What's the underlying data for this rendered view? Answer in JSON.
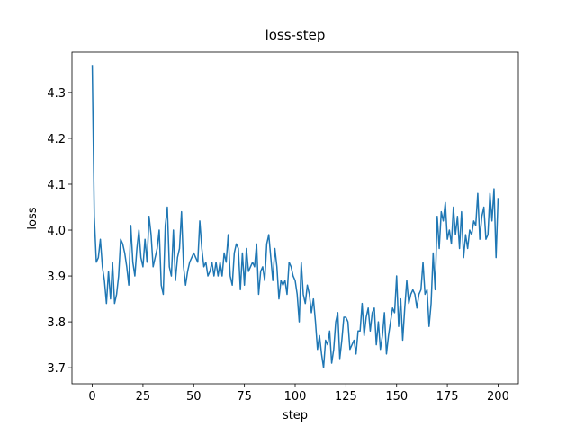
{
  "chart_data": {
    "type": "line",
    "title": "loss-step",
    "x_label": "step",
    "y_label": "loss",
    "color": "#1f77b4",
    "x": [
      0,
      1,
      2,
      3,
      4,
      5,
      6,
      7,
      8,
      9,
      10,
      11,
      12,
      13,
      14,
      15,
      16,
      17,
      18,
      19,
      20,
      21,
      22,
      23,
      24,
      25,
      26,
      27,
      28,
      29,
      30,
      31,
      32,
      33,
      34,
      35,
      36,
      37,
      38,
      39,
      40,
      41,
      42,
      43,
      44,
      45,
      46,
      47,
      48,
      49,
      50,
      51,
      52,
      53,
      54,
      55,
      56,
      57,
      58,
      59,
      60,
      61,
      62,
      63,
      64,
      65,
      66,
      67,
      68,
      69,
      70,
      71,
      72,
      73,
      74,
      75,
      76,
      77,
      78,
      79,
      80,
      81,
      82,
      83,
      84,
      85,
      86,
      87,
      88,
      89,
      90,
      91,
      92,
      93,
      94,
      95,
      96,
      97,
      98,
      99,
      100,
      101,
      102,
      103,
      104,
      105,
      106,
      107,
      108,
      109,
      110,
      111,
      112,
      113,
      114,
      115,
      116,
      117,
      118,
      119,
      120,
      121,
      122,
      123,
      124,
      125,
      126,
      127,
      128,
      129,
      130,
      131,
      132,
      133,
      134,
      135,
      136,
      137,
      138,
      139,
      140,
      141,
      142,
      143,
      144,
      145,
      146,
      147,
      148,
      149,
      150,
      151,
      152,
      153,
      154,
      155,
      156,
      157,
      158,
      159,
      160,
      161,
      162,
      163,
      164,
      165,
      166,
      167,
      168,
      169,
      170,
      171,
      172,
      173,
      174,
      175,
      176,
      177,
      178,
      179,
      180,
      181,
      182,
      183,
      184,
      185,
      186,
      187,
      188,
      189,
      190,
      191,
      192,
      193,
      194,
      195,
      196,
      197,
      198,
      199,
      200
    ],
    "values": [
      4.36,
      4.03,
      3.93,
      3.94,
      3.98,
      3.92,
      3.89,
      3.84,
      3.91,
      3.85,
      3.93,
      3.84,
      3.86,
      3.9,
      3.98,
      3.97,
      3.95,
      3.92,
      3.88,
      4.01,
      3.93,
      3.9,
      3.96,
      4.0,
      3.94,
      3.92,
      3.98,
      3.93,
      4.03,
      3.99,
      3.92,
      3.94,
      3.96,
      4.0,
      3.88,
      3.86,
      4.01,
      4.05,
      3.92,
      3.9,
      4.0,
      3.89,
      3.94,
      3.96,
      4.04,
      3.92,
      3.88,
      3.91,
      3.93,
      3.94,
      3.95,
      3.94,
      3.93,
      4.02,
      3.96,
      3.92,
      3.93,
      3.9,
      3.91,
      3.93,
      3.9,
      3.93,
      3.9,
      3.93,
      3.9,
      3.95,
      3.93,
      3.99,
      3.9,
      3.88,
      3.95,
      3.97,
      3.96,
      3.87,
      3.95,
      3.88,
      3.96,
      3.91,
      3.92,
      3.93,
      3.92,
      3.97,
      3.86,
      3.91,
      3.92,
      3.89,
      3.97,
      3.99,
      3.94,
      3.89,
      3.96,
      3.92,
      3.85,
      3.89,
      3.88,
      3.89,
      3.86,
      3.93,
      3.92,
      3.9,
      3.89,
      3.86,
      3.8,
      3.93,
      3.86,
      3.84,
      3.88,
      3.86,
      3.82,
      3.85,
      3.8,
      3.74,
      3.77,
      3.73,
      3.7,
      3.76,
      3.75,
      3.78,
      3.71,
      3.74,
      3.8,
      3.82,
      3.72,
      3.76,
      3.81,
      3.81,
      3.8,
      3.74,
      3.75,
      3.76,
      3.73,
      3.78,
      3.78,
      3.84,
      3.77,
      3.81,
      3.83,
      3.78,
      3.82,
      3.83,
      3.75,
      3.8,
      3.74,
      3.77,
      3.82,
      3.73,
      3.77,
      3.8,
      3.83,
      3.82,
      3.9,
      3.79,
      3.85,
      3.76,
      3.83,
      3.89,
      3.84,
      3.86,
      3.87,
      3.86,
      3.83,
      3.86,
      3.87,
      3.93,
      3.86,
      3.87,
      3.79,
      3.84,
      3.95,
      3.87,
      4.03,
      3.96,
      4.04,
      4.02,
      4.06,
      3.98,
      4.0,
      3.97,
      4.05,
      3.99,
      4.03,
      3.96,
      4.04,
      3.94,
      3.99,
      3.96,
      4.0,
      3.99,
      4.02,
      4.01,
      4.08,
      3.98,
      4.03,
      4.05,
      3.98,
      3.99,
      4.08,
      4.02,
      4.09,
      3.94,
      4.07
    ],
    "xlim": [
      -10,
      210
    ],
    "xticks": [
      0,
      25,
      50,
      75,
      100,
      125,
      150,
      175,
      200
    ],
    "ylim": [
      3.665,
      4.388
    ],
    "yticks": [
      3.7,
      3.8,
      3.9,
      {
        "value": 4,
        "label": "4.0"
      },
      4.1,
      4.2,
      4.3
    ]
  }
}
